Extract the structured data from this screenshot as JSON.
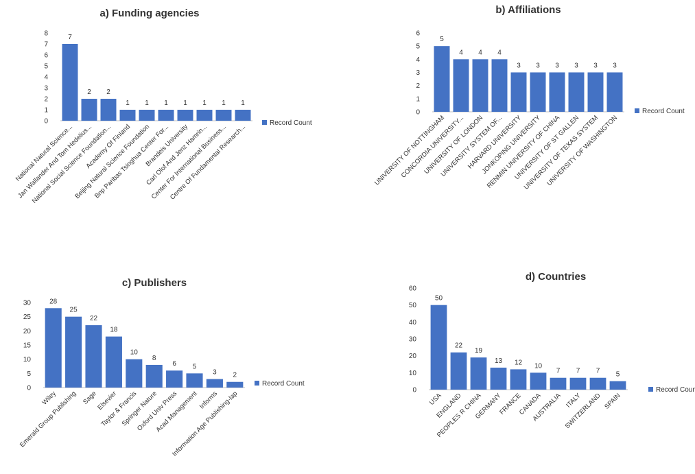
{
  "chart_data": [
    {
      "type": "bar",
      "title": "a) Funding agencies",
      "categories": [
        "National Natural Science...",
        "Jan Wallander And Tom Hedelius...",
        "National Social Science Foundation...",
        "Academy Of Finland",
        "Beijing Natural Science Foundation",
        "Bnp Paribas Tsinghua Center For...",
        "Brandeis University",
        "Carl Olof And Jenz Hamrin...",
        "Center For International Business...",
        "Centre Of Fundamental Research..."
      ],
      "series": [
        {
          "name": "Record Count",
          "values": [
            7,
            2,
            2,
            1,
            1,
            1,
            1,
            1,
            1,
            1
          ]
        }
      ],
      "yticks": [
        "0",
        "1",
        "2",
        "3",
        "4",
        "5",
        "6",
        "7",
        "8"
      ],
      "ylim": [
        0,
        8
      ],
      "legend": "right",
      "grid": false,
      "color": "#4472c4"
    },
    {
      "type": "bar",
      "title": "b) Affiliations",
      "categories": [
        "UNIVERSITY OF NOTTINGHAM",
        "CONCORDIA UNIVERSITY...",
        "UNIVERSITY OF LONDON",
        "UNIVERSITY SYSTEM OF...",
        "HARVARD UNIVERSITY",
        "JONKOPING UNIVERSITY",
        "RENMIN UNIVERSITY OF CHINA",
        "UNIVERSITY OF ST GALLEN",
        "UNIVERSITY OF TEXAS SYSTEM",
        "UNIVERSITY OF WASHINGTON"
      ],
      "series": [
        {
          "name": "Record Count",
          "values": [
            5,
            4,
            4,
            4,
            3,
            3,
            3,
            3,
            3,
            3
          ]
        }
      ],
      "yticks": [
        "0",
        "1",
        "2",
        "3",
        "4",
        "5",
        "6"
      ],
      "ylim": [
        0,
        6
      ],
      "legend": "right",
      "grid": false,
      "color": "#4472c4"
    },
    {
      "type": "bar",
      "title": "c) Publishers",
      "categories": [
        "Wiley",
        "Emerald Group Publishing",
        "Sage",
        "Elsevier",
        "Taylor & Francis",
        "Springer Nature",
        "Oxford Univ Press",
        "Acad Management",
        "Informs",
        "Information Age Publishing-Iap"
      ],
      "series": [
        {
          "name": "Record Count",
          "values": [
            28,
            25,
            22,
            18,
            10,
            8,
            6,
            5,
            3,
            2
          ]
        }
      ],
      "yticks": [
        "0",
        "5",
        "10",
        "15",
        "20",
        "25",
        "30"
      ],
      "ylim": [
        0,
        30
      ],
      "legend": "right",
      "grid": false,
      "color": "#4472c4"
    },
    {
      "type": "bar",
      "title": "d) Countries",
      "categories": [
        "USA",
        "ENGLAND",
        "PEOPLES R CHINA",
        "GERMANY",
        "FRANCE",
        "CANADA",
        "AUSTRALIA",
        "ITALY",
        "SWITZERLAND",
        "SPAIN"
      ],
      "series": [
        {
          "name": "Record Count",
          "values": [
            50,
            22,
            19,
            13,
            12,
            10,
            7,
            7,
            7,
            5
          ]
        }
      ],
      "yticks": [
        "0",
        "10",
        "20",
        "30",
        "40",
        "50",
        "60"
      ],
      "ylim": [
        0,
        60
      ],
      "legend": "right",
      "grid": false,
      "color": "#4472c4"
    }
  ]
}
